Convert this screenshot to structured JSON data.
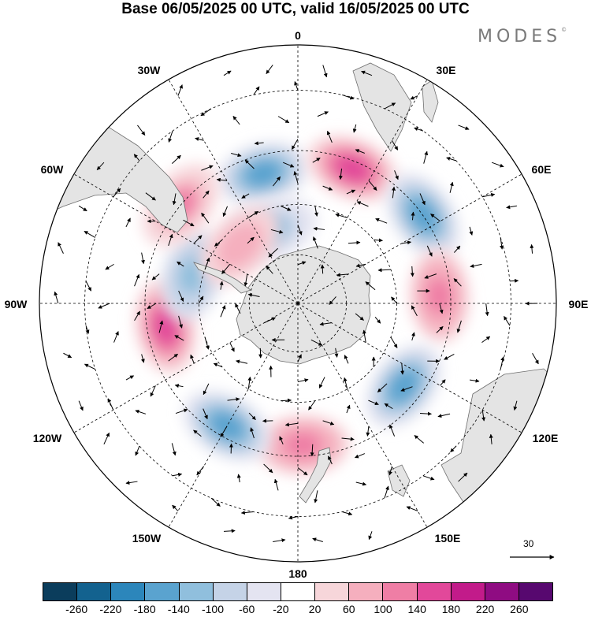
{
  "title": "Base 06/05/2025 00 UTC, valid 16/05/2025 00 UTC",
  "brand": "MODES",
  "brand_mark": "©",
  "longitude_labels": {
    "lon_0": "0",
    "lon_30e": "30E",
    "lon_60e": "60E",
    "lon_90e": "90E",
    "lon_120e": "120E",
    "lon_150e": "150E",
    "lon_180": "180",
    "lon_150w": "150W",
    "lon_120w": "120W",
    "lon_90w": "90W",
    "lon_60w": "60W",
    "lon_30w": "30W"
  },
  "vector_scale": {
    "value": "30"
  },
  "colorbar": {
    "colors": [
      "#0b3d5c",
      "#13628f",
      "#2c86bb",
      "#5aa3cf",
      "#90bfdd",
      "#c5d3e7",
      "#e4e4f1",
      "#ffffff",
      "#f7d6da",
      "#f5afbe",
      "#ef7ea5",
      "#e2489a",
      "#c21b8a",
      "#8f0c82",
      "#57086f"
    ],
    "tick_labels": [
      "-260",
      "-220",
      "-180",
      "-140",
      "-100",
      "-60",
      "-20",
      "20",
      "60",
      "100",
      "140",
      "180",
      "220",
      "260"
    ]
  },
  "colors": {
    "land": "#e4e4e4",
    "coast": "#6e6e6e",
    "grid": "#000000"
  },
  "chart_data": {
    "type": "heatmap",
    "projection": "south polar stereographic",
    "title": "Base 06/05/2025 00 UTC, valid 16/05/2025 00 UTC",
    "color_scale_levels": [
      -260,
      -220,
      -180,
      -140,
      -100,
      -60,
      -20,
      20,
      60,
      100,
      140,
      180,
      220,
      260
    ],
    "vector_reference": 30,
    "features": [
      {
        "label": "negative anomaly",
        "lon": -15,
        "lat": -50,
        "value": -150
      },
      {
        "label": "positive anomaly",
        "lon": 22,
        "lat": -47,
        "value": 180
      },
      {
        "label": "negative anomaly",
        "lon": 55,
        "lat": -45,
        "value": -160
      },
      {
        "label": "positive anomaly",
        "lon": 87,
        "lat": -48,
        "value": 130
      },
      {
        "label": "negative anomaly",
        "lon": 128,
        "lat": -50,
        "value": -150
      },
      {
        "label": "positive anomaly",
        "lon": 178,
        "lat": -48,
        "value": 130
      },
      {
        "label": "negative anomaly",
        "lon": -150,
        "lat": -48,
        "value": -170
      },
      {
        "label": "positive anomaly",
        "lon": -100,
        "lat": -50,
        "value": 150
      },
      {
        "label": "negative anomaly",
        "lon": -75,
        "lat": -57,
        "value": -130
      },
      {
        "label": "positive anomaly",
        "lon": -50,
        "lat": -45,
        "value": 120
      },
      {
        "label": "negative anomaly",
        "lon": -20,
        "lat": -66,
        "value": -100
      },
      {
        "label": "positive anomaly",
        "lon": -45,
        "lat": -65,
        "value": 100
      }
    ]
  }
}
